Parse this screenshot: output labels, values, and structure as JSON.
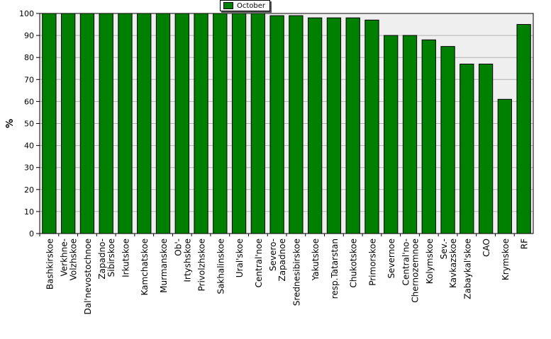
{
  "chart_data": {
    "type": "bar",
    "title": "",
    "xlabel": "",
    "ylabel": "%",
    "ylim": [
      0,
      100
    ],
    "yticks": [
      0,
      10,
      20,
      30,
      40,
      50,
      60,
      70,
      80,
      90,
      100
    ],
    "grid": true,
    "legend": "top-center",
    "bar_color": "#008000",
    "series": [
      {
        "name": "October",
        "values": [
          100,
          100,
          100,
          100,
          100,
          100,
          100,
          100,
          100,
          100,
          100,
          100,
          99,
          99,
          98,
          98,
          98,
          97,
          90,
          90,
          88,
          85,
          77,
          77,
          61,
          95
        ]
      }
    ],
    "categories": [
      [
        "Bashkirskoe"
      ],
      [
        "Verkhne-",
        "Volzhskoe"
      ],
      [
        "Dal'nevostochnoe"
      ],
      [
        "Zapadno-",
        "Sibirskoe"
      ],
      [
        "Irkutskoe"
      ],
      [
        "Kamchatskoe"
      ],
      [
        "Murmanskoe"
      ],
      [
        "Ob'-",
        "Irtyshskoe"
      ],
      [
        "Privolzhskoe"
      ],
      [
        "Sakhalinskoe"
      ],
      [
        "Ural'skoe"
      ],
      [
        "Central'noe"
      ],
      [
        "Severo-",
        "Zapadnoe"
      ],
      [
        "Srednesibirskoe"
      ],
      [
        "Yakutskoe"
      ],
      [
        "resp.Tatarstan"
      ],
      [
        "Chukotskoe"
      ],
      [
        "Primorskoe"
      ],
      [
        "Severnoe"
      ],
      [
        "Central'no-",
        "Chernozemnoe"
      ],
      [
        "Kolymskoe"
      ],
      [
        "Sev.-",
        "Kavkazskoe"
      ],
      [
        "Zabaykal'skoe"
      ],
      [
        "CAO"
      ],
      [
        "Krymskoe"
      ],
      [
        "RF"
      ]
    ]
  }
}
